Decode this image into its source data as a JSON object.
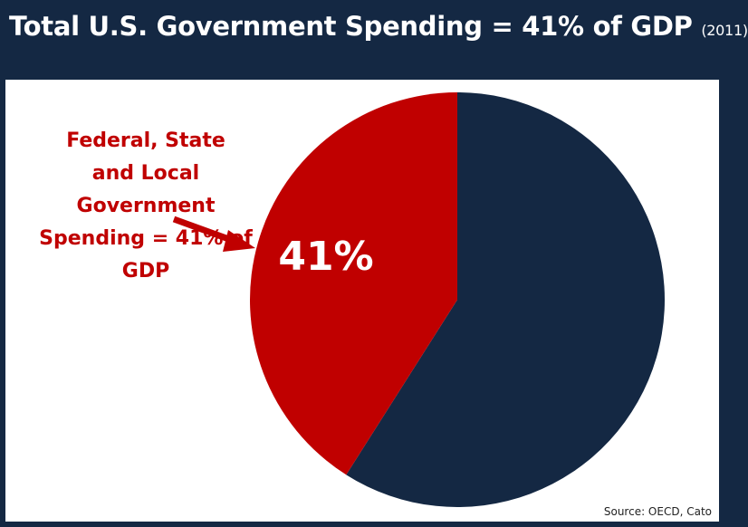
{
  "header": {
    "title": "Total U.S. Government Spending = 41% of GDP",
    "year": "(2011)"
  },
  "chart_data": {
    "type": "pie",
    "slices": [
      {
        "label": "Federal, State and Local Government Spending",
        "value": 41,
        "display": "41%",
        "color": "#c00000"
      },
      {
        "label": "",
        "value": 59,
        "display": "",
        "color": "#142843"
      }
    ],
    "annotation": "Federal, State\nand Local Government\nSpending = 41% of GDP",
    "annotation_color": "#c00000"
  },
  "source": "Source: OECD, Cato"
}
